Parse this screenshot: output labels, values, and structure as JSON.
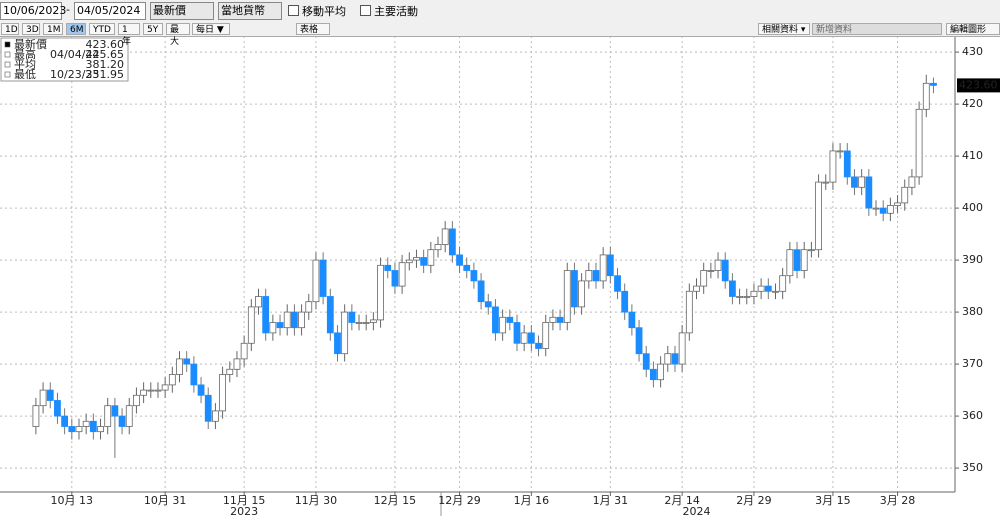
{
  "toolbar": {
    "start_date": "10/06/2023",
    "separator": "-",
    "end_date": "04/05/2024",
    "field": "最新價",
    "currency": "當地貨幣",
    "moving_average": "移動平均",
    "key_events": "主要活動",
    "periods": [
      "1D",
      "3D",
      "1M",
      "6M",
      "YTD",
      "1年",
      "5Y",
      "最大"
    ],
    "active_period": "6M",
    "frequency": "每日 ▼",
    "table": "表格",
    "related": "相關資料 ▾",
    "add_data": "新增資料",
    "edit_chart": "編輯圖形"
  },
  "chart_data": {
    "type": "candlestick",
    "up_color": "#ffffff",
    "down_color": "#1a8cff",
    "grid": true,
    "open": [
      358,
      362,
      365,
      363,
      360,
      358,
      357,
      358,
      359,
      357,
      358,
      362,
      360,
      358,
      362,
      364,
      365,
      365,
      365,
      366,
      368,
      371,
      370,
      366,
      364,
      359,
      361,
      368,
      369,
      371,
      374,
      381,
      383,
      376,
      378,
      377,
      380,
      377,
      380,
      382,
      390,
      383,
      376,
      372,
      380,
      378,
      378,
      378,
      378.5,
      389,
      388,
      385,
      389.5,
      390,
      390.5,
      389,
      392,
      393,
      396,
      391,
      389,
      388,
      386,
      382,
      381,
      376,
      379,
      378,
      374,
      376,
      374,
      373,
      378,
      379,
      378,
      388,
      381,
      386,
      388,
      386,
      391,
      387,
      384,
      380,
      377,
      372,
      369,
      367,
      370,
      372,
      370,
      376,
      384,
      385,
      388,
      388,
      390,
      386,
      383,
      383,
      383,
      384,
      385,
      384,
      384,
      387,
      392,
      388,
      392,
      392,
      405,
      405,
      411,
      411,
      406,
      404,
      406,
      400,
      400,
      399,
      400.5,
      401,
      404,
      406,
      419,
      424
    ],
    "high": [
      363.5,
      366.5,
      366.5,
      364.5,
      361.5,
      359.5,
      359.5,
      360.5,
      360.5,
      359.5,
      363.5,
      363.5,
      361.5,
      363.5,
      365.5,
      366.5,
      366.5,
      366.5,
      367.5,
      369.5,
      372.5,
      372.5,
      371.5,
      367.5,
      365.5,
      362.5,
      369.5,
      370.5,
      372.5,
      375.5,
      382.5,
      384.5,
      384.5,
      379.5,
      379.5,
      381.5,
      381.5,
      381.5,
      383.5,
      391.5,
      391.5,
      384.5,
      377.5,
      381.5,
      381.5,
      379.5,
      379.5,
      380,
      390.5,
      390.5,
      389.5,
      391,
      391.5,
      392,
      392,
      393.5,
      394.5,
      397.5,
      397.5,
      392.5,
      390.5,
      389.5,
      387.5,
      383.5,
      382.5,
      380.5,
      380.5,
      379.5,
      377.5,
      377.5,
      375.5,
      379.5,
      380.5,
      380.5,
      389.5,
      389.5,
      387.5,
      389.5,
      389.5,
      392.5,
      392.5,
      388.5,
      385.5,
      381.5,
      378.5,
      373.5,
      370.5,
      371.5,
      373.5,
      373.5,
      377.5,
      385.5,
      386.5,
      389.5,
      389.5,
      391.5,
      391.5,
      387.5,
      384.5,
      384.5,
      385.5,
      386.5,
      386.5,
      385.5,
      388.5,
      393.5,
      393.5,
      393.5,
      393.5,
      406.5,
      406.5,
      412.5,
      412.5,
      412.5,
      407.5,
      407.5,
      407.5,
      401.5,
      401.5,
      402,
      402.5,
      405.5,
      407.5,
      420.5,
      425.65,
      425.1
    ],
    "low": [
      356.5,
      360.5,
      361.5,
      358.5,
      356.5,
      355.5,
      355.5,
      356.5,
      355.5,
      355.5,
      356.5,
      351.95,
      356.5,
      356.5,
      360.5,
      362.5,
      363.5,
      363.5,
      363.5,
      364.5,
      366.5,
      368.5,
      364.5,
      362.5,
      357.5,
      357.5,
      359.5,
      366.5,
      367.5,
      369.5,
      372.5,
      379.5,
      374.5,
      374.5,
      375.5,
      375.5,
      375.5,
      375.5,
      378.5,
      380.5,
      381.5,
      374.5,
      370.5,
      370.5,
      376.5,
      376.5,
      376.5,
      376.5,
      377,
      386.5,
      383.5,
      383.5,
      388,
      388.5,
      387.5,
      387.5,
      390.5,
      391.5,
      389.5,
      387.5,
      386.5,
      384.5,
      380.5,
      379.5,
      374.5,
      374.5,
      376.5,
      372.5,
      372.5,
      372.5,
      371.5,
      371.5,
      376.5,
      376.5,
      376.5,
      379.5,
      379.5,
      384.5,
      384.5,
      384.5,
      385.5,
      382.5,
      378.5,
      375.5,
      370.5,
      367.5,
      365.5,
      365.5,
      368.5,
      368.5,
      368.5,
      374.5,
      382.5,
      383.5,
      386.5,
      386.5,
      384.5,
      381.5,
      381.5,
      381.5,
      381.5,
      382.5,
      382.5,
      382.5,
      382.5,
      385.5,
      386.5,
      386.5,
      390.5,
      390.5,
      403.5,
      403.5,
      409.5,
      404.5,
      402.5,
      402.5,
      398.5,
      398.5,
      397.5,
      397.5,
      399,
      399.5,
      402.5,
      404.5,
      417.5,
      422.1
    ],
    "close": [
      362,
      365,
      363,
      360,
      358,
      357,
      358,
      359,
      357,
      358,
      362,
      360,
      358,
      362,
      364,
      365,
      365,
      365,
      366,
      368,
      371,
      370,
      366,
      364,
      359,
      361,
      368,
      369,
      371,
      374,
      381,
      383,
      376,
      378,
      377,
      380,
      377,
      380,
      382,
      390,
      383,
      376,
      372,
      380,
      378,
      378,
      378,
      378.5,
      389,
      388,
      385,
      389.5,
      390,
      390.5,
      389,
      392,
      393,
      396,
      391,
      389,
      388,
      386,
      382,
      381,
      376,
      379,
      378,
      374,
      376,
      374,
      373,
      378,
      379,
      378,
      388,
      381,
      386,
      388,
      386,
      391,
      387,
      384,
      380,
      377,
      372,
      369,
      367,
      370,
      372,
      370,
      376,
      384,
      385,
      388,
      388,
      390,
      386,
      383,
      383,
      383,
      384,
      385,
      384,
      384,
      387,
      392,
      388,
      392,
      392,
      405,
      405,
      411,
      411,
      406,
      404,
      406,
      400,
      400,
      399,
      400.5,
      401,
      404,
      406,
      419,
      424,
      423.6
    ],
    "xlim": [
      -5,
      128
    ],
    "xticks": [
      {
        "value": 5,
        "label": "10月 13"
      },
      {
        "value": 18,
        "label": "10月 31"
      },
      {
        "value": 29,
        "label": "11月 15"
      },
      {
        "value": 39,
        "label": "11月 30"
      },
      {
        "value": 50,
        "label": "12月 15"
      },
      {
        "value": 59,
        "label": "12月 29"
      },
      {
        "value": 69,
        "label": "1月 16"
      },
      {
        "value": 80,
        "label": "1月 31"
      },
      {
        "value": 90,
        "label": "2月 14"
      },
      {
        "value": 100,
        "label": "2月 29"
      },
      {
        "value": 111,
        "label": "3月 15"
      },
      {
        "value": 120,
        "label": "3月 28"
      }
    ],
    "year_labels": [
      {
        "value": 29,
        "label": "2023"
      },
      {
        "value": 92,
        "label": "2024"
      }
    ],
    "ylim": [
      345.4,
      433.1
    ],
    "yticks": [
      350,
      360,
      370,
      380,
      390,
      400,
      410,
      420,
      430
    ],
    "last_label": {
      "value": 423.6,
      "label": "423.60"
    },
    "legend": [
      {
        "name": "最新價",
        "value": 423.6,
        "label": "423.60"
      },
      {
        "name": "最高",
        "date": "04/04/24",
        "value": 425.65
      },
      {
        "name": "平均",
        "value": 381.2,
        "label": "381.20"
      },
      {
        "name": "最低",
        "date": "10/23/23",
        "value": 351.95
      }
    ]
  }
}
